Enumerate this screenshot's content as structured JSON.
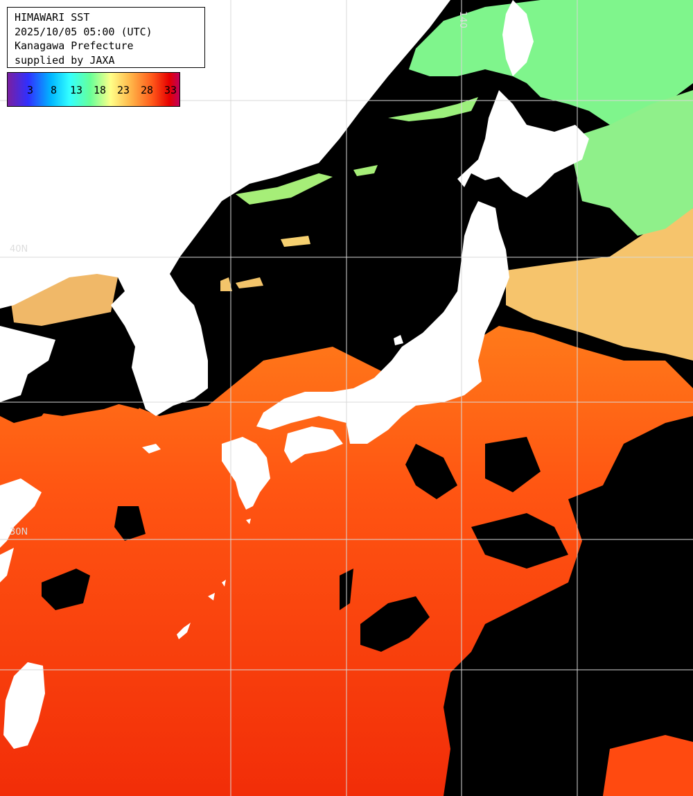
{
  "title": {
    "line1": "HIMAWARI SST",
    "line2": "2025/10/05 05:00 (UTC)",
    "line3": "Kanagawa Prefecture",
    "line4": "supplied by JAXA"
  },
  "legend": {
    "labels": [
      "3",
      "8",
      "13",
      "18",
      "23",
      "28",
      "33"
    ]
  },
  "grid_labels": {
    "lat40": "40N",
    "lat30": "30N",
    "lon140": "140"
  },
  "colors": {
    "cloud": "#000000",
    "land": "#ffffff",
    "grid": "#d8d8d8",
    "cold_water": "#7cf58a",
    "mid_water": "#f5c36a",
    "warm_water": "#ff5a14",
    "hot_water": "#ee2a08"
  }
}
